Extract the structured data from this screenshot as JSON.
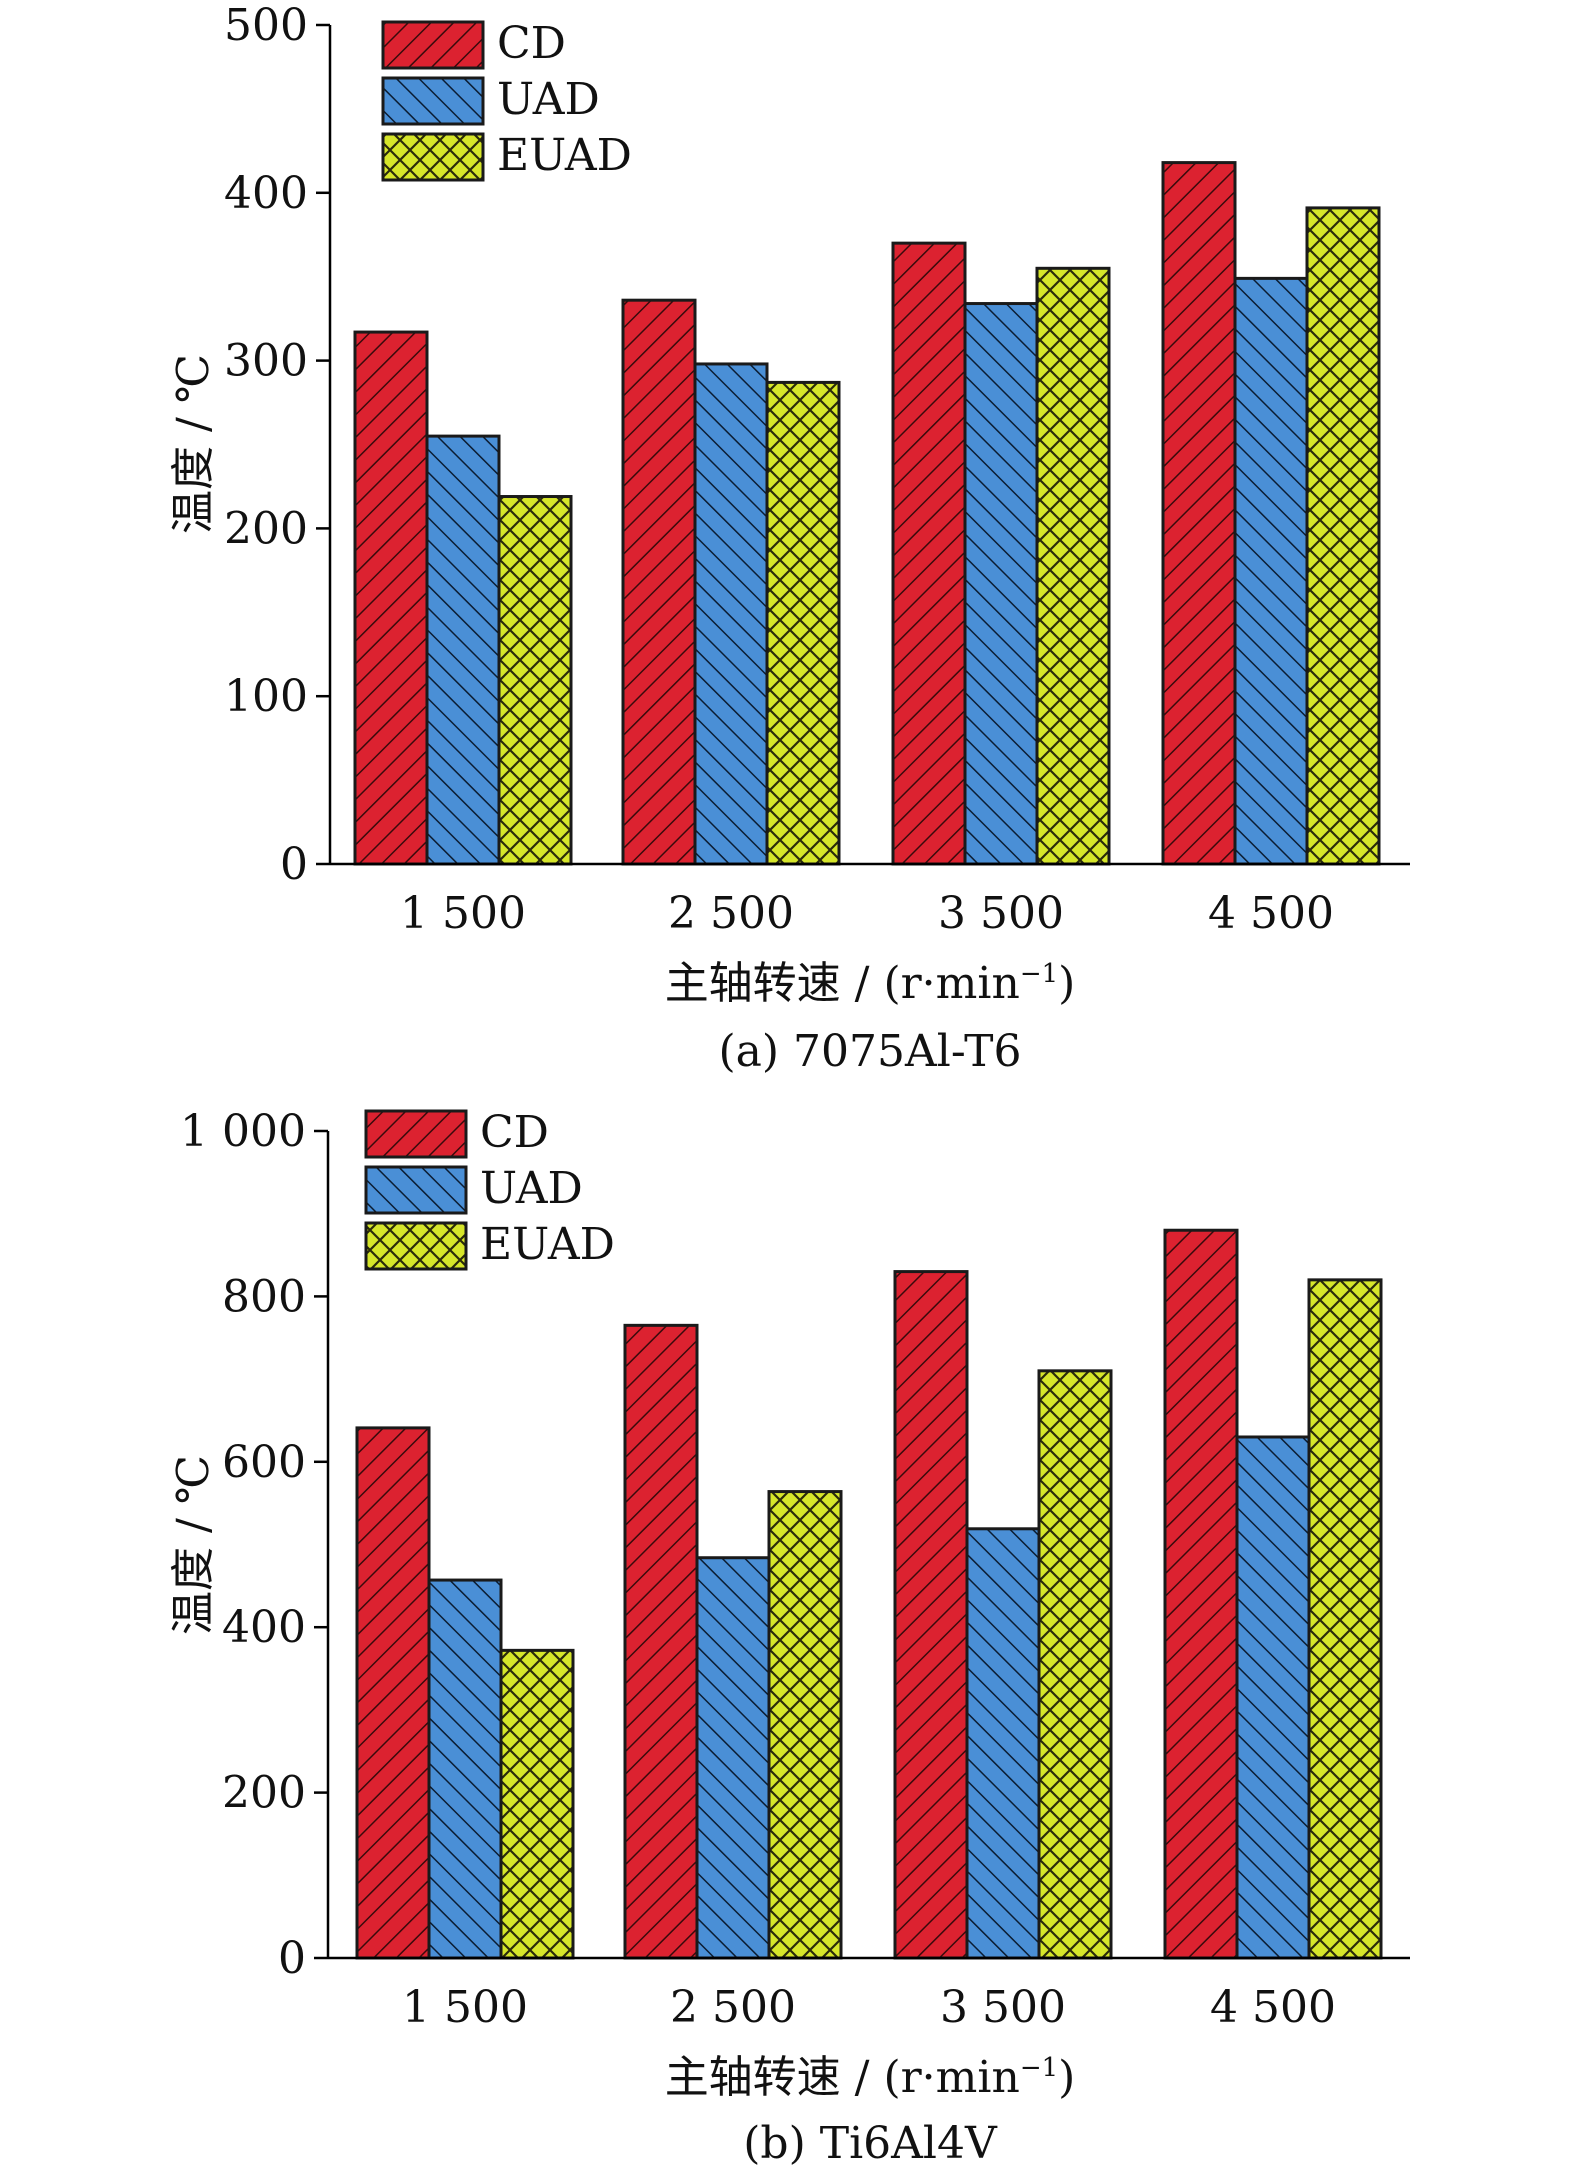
{
  "colors": {
    "CD": "#dc2230",
    "UAD": "#4a8fd6",
    "EUAD": "#d6e62a"
  },
  "chart_data": [
    {
      "type": "bar",
      "caption": "(a) 7075Al-T6",
      "xlabel_main": "主轴转速 / (r·min",
      "xlabel_sup": "−1",
      "xlabel_end": ")",
      "ylabel": "温度 / ℃",
      "ylim": [
        0,
        500
      ],
      "yticks": [
        0,
        100,
        200,
        300,
        400,
        500
      ],
      "ytick_labels": [
        "0",
        "100",
        "200",
        "300",
        "400",
        "500"
      ],
      "categories": [
        "1 500",
        "2 500",
        "3 500",
        "4 500"
      ],
      "legend_position": "top-left",
      "series": [
        {
          "name": "CD",
          "values": [
            317,
            336,
            370,
            418
          ],
          "pattern": "diag-right"
        },
        {
          "name": "UAD",
          "values": [
            255,
            298,
            334,
            349
          ],
          "pattern": "diag-left"
        },
        {
          "name": "EUAD",
          "values": [
            219,
            287,
            355,
            391
          ],
          "pattern": "cross"
        }
      ]
    },
    {
      "type": "bar",
      "caption": "(b) Ti6Al4V",
      "xlabel_main": "主轴转速 / (r·min",
      "xlabel_sup": "−1",
      "xlabel_end": ")",
      "ylabel": "温度 / ℃",
      "ylim": [
        0,
        1000
      ],
      "yticks": [
        0,
        200,
        400,
        600,
        800,
        1000
      ],
      "ytick_labels": [
        "0",
        "200",
        "400",
        "600",
        "800",
        "1 000"
      ],
      "categories": [
        "1 500",
        "2 500",
        "3 500",
        "4 500"
      ],
      "legend_position": "top-left",
      "series": [
        {
          "name": "CD",
          "values": [
            641,
            765,
            830,
            880
          ],
          "pattern": "diag-right"
        },
        {
          "name": "UAD",
          "values": [
            457,
            484,
            519,
            630
          ],
          "pattern": "diag-left"
        },
        {
          "name": "EUAD",
          "values": [
            372,
            564,
            710,
            820
          ],
          "pattern": "cross"
        }
      ]
    }
  ]
}
